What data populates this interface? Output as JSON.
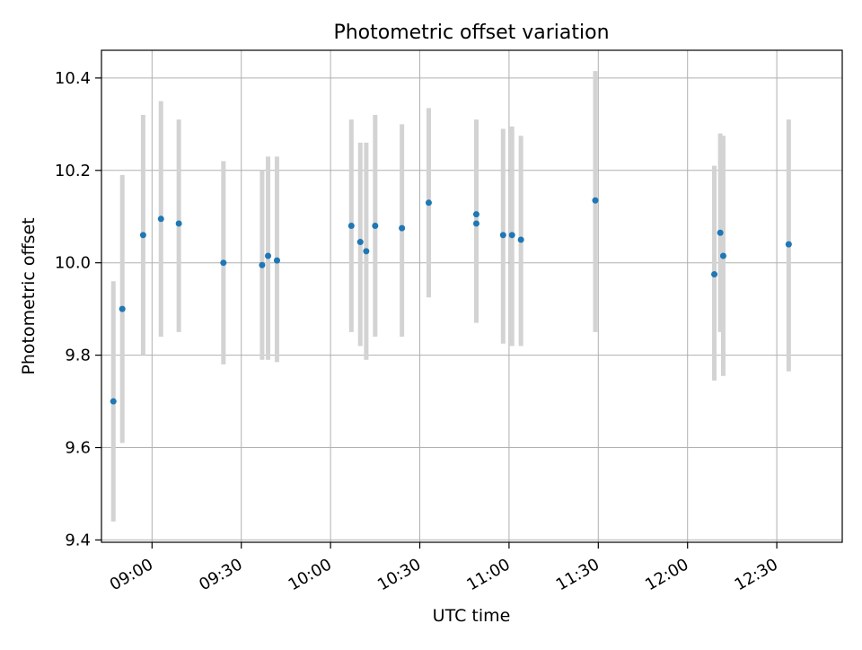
{
  "chart_data": {
    "type": "scatter",
    "title": "Photometric offset variation",
    "xlabel": "UTC time",
    "ylabel": "Photometric offset",
    "x_tick_labels": [
      "09:00",
      "09:30",
      "10:00",
      "10:30",
      "11:00",
      "11:30",
      "12:00",
      "12:30"
    ],
    "x_tick_minutes": [
      540,
      570,
      600,
      630,
      660,
      690,
      720,
      750
    ],
    "y_ticks": [
      9.4,
      9.6,
      9.8,
      10.0,
      10.2,
      10.4
    ],
    "y_tick_labels": [
      "9.4",
      "9.6",
      "9.8",
      "10.0",
      "10.2",
      "10.4"
    ],
    "xlim": [
      "08:43",
      "12:52"
    ],
    "ylim": [
      9.395,
      10.46
    ],
    "grid": true,
    "point_color": "#1f77b4",
    "errorbar_color": "#d3d3d3",
    "points": [
      {
        "x": "08:47",
        "y": 9.7,
        "lo": 9.44,
        "hi": 9.96
      },
      {
        "x": "08:50",
        "y": 9.9,
        "lo": 9.61,
        "hi": 10.19
      },
      {
        "x": "08:57",
        "y": 10.06,
        "lo": 9.8,
        "hi": 10.32
      },
      {
        "x": "09:03",
        "y": 10.095,
        "lo": 9.84,
        "hi": 10.35
      },
      {
        "x": "09:09",
        "y": 10.085,
        "lo": 9.85,
        "hi": 10.31
      },
      {
        "x": "09:24",
        "y": 10.0,
        "lo": 9.78,
        "hi": 10.22
      },
      {
        "x": "09:37",
        "y": 9.995,
        "lo": 9.79,
        "hi": 10.2
      },
      {
        "x": "09:39",
        "y": 10.015,
        "lo": 9.79,
        "hi": 10.23
      },
      {
        "x": "09:42",
        "y": 10.005,
        "lo": 9.785,
        "hi": 10.23
      },
      {
        "x": "10:07",
        "y": 10.08,
        "lo": 9.85,
        "hi": 10.31
      },
      {
        "x": "10:10",
        "y": 10.045,
        "lo": 9.82,
        "hi": 10.26
      },
      {
        "x": "10:12",
        "y": 10.025,
        "lo": 9.79,
        "hi": 10.26
      },
      {
        "x": "10:15",
        "y": 10.08,
        "lo": 9.84,
        "hi": 10.32
      },
      {
        "x": "10:24",
        "y": 10.075,
        "lo": 9.84,
        "hi": 10.3
      },
      {
        "x": "10:33",
        "y": 10.13,
        "lo": 9.925,
        "hi": 10.335
      },
      {
        "x": "10:49",
        "y": 10.105,
        "lo": 9.9,
        "hi": 10.31
      },
      {
        "x": "10:49",
        "y": 10.085,
        "lo": 9.87,
        "hi": 10.3
      },
      {
        "x": "10:58",
        "y": 10.06,
        "lo": 9.825,
        "hi": 10.29
      },
      {
        "x": "11:01",
        "y": 10.06,
        "lo": 9.82,
        "hi": 10.295
      },
      {
        "x": "11:04",
        "y": 10.05,
        "lo": 9.82,
        "hi": 10.275
      },
      {
        "x": "11:29",
        "y": 10.135,
        "lo": 9.85,
        "hi": 10.415
      },
      {
        "x": "12:09",
        "y": 9.975,
        "lo": 9.745,
        "hi": 10.21
      },
      {
        "x": "12:11",
        "y": 10.065,
        "lo": 9.85,
        "hi": 10.28
      },
      {
        "x": "12:12",
        "y": 10.015,
        "lo": 9.755,
        "hi": 10.275
      },
      {
        "x": "12:34",
        "y": 10.04,
        "lo": 9.765,
        "hi": 10.31
      }
    ]
  }
}
